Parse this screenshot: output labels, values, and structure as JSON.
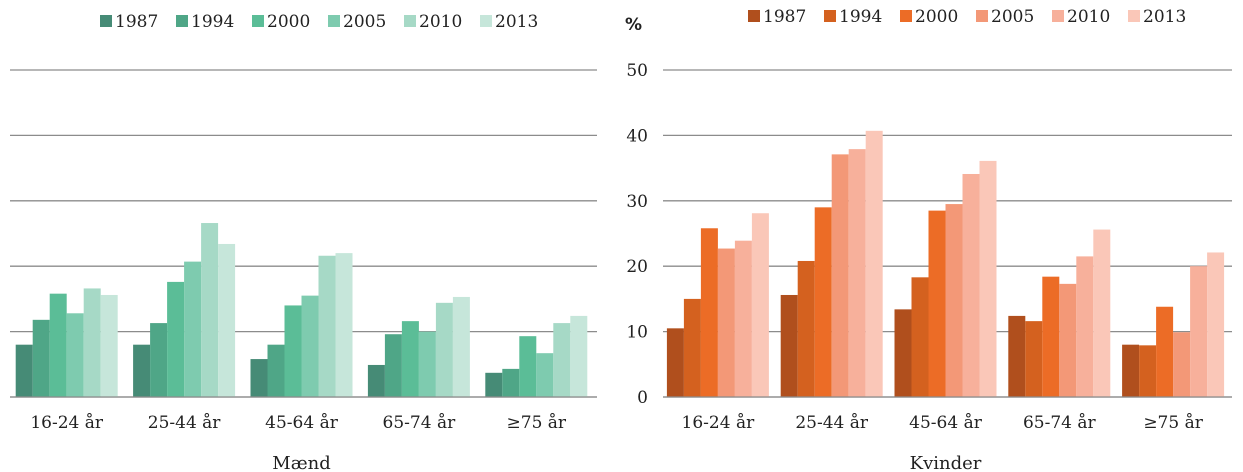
{
  "chart_data": [
    {
      "type": "bar",
      "xlabel": "Mænd",
      "categories": [
        "16-24 år",
        "25-44 år",
        "45-64 år",
        "65-74 år",
        "≥75 år"
      ],
      "ylim": [
        0,
        50
      ],
      "yticks": [
        0,
        10,
        20,
        30,
        40,
        50
      ],
      "show_y_tick_labels": false,
      "grid": true,
      "legend_position": "top",
      "series": [
        {
          "name": "1987",
          "color": "#468b76",
          "values": [
            8.0,
            8.0,
            5.8,
            4.9,
            3.7
          ]
        },
        {
          "name": "1994",
          "color": "#4fa687",
          "values": [
            11.8,
            11.3,
            8.0,
            9.6,
            4.3
          ]
        },
        {
          "name": "2000",
          "color": "#5bbd97",
          "values": [
            15.8,
            17.6,
            14.0,
            11.6,
            9.3
          ]
        },
        {
          "name": "2005",
          "color": "#7ecbaf",
          "values": [
            12.8,
            20.7,
            15.5,
            10.0,
            6.7
          ]
        },
        {
          "name": "2010",
          "color": "#a6d9c6",
          "values": [
            16.6,
            26.6,
            21.6,
            14.4,
            11.3
          ]
        },
        {
          "name": "2013",
          "color": "#c6e6da",
          "values": [
            15.6,
            23.4,
            22.0,
            15.3,
            12.4
          ]
        }
      ]
    },
    {
      "type": "bar",
      "xlabel": "Kvinder",
      "ylabel": "%",
      "categories": [
        "16-24 år",
        "25-44 år",
        "45-64 år",
        "65-74 år",
        "≥75 år"
      ],
      "ylim": [
        0,
        50
      ],
      "yticks": [
        0,
        10,
        20,
        30,
        40,
        50
      ],
      "show_y_tick_labels": true,
      "grid": true,
      "legend_position": "top",
      "series": [
        {
          "name": "1987",
          "color": "#b04f1d",
          "values": [
            10.5,
            15.6,
            13.4,
            12.4,
            8.0
          ]
        },
        {
          "name": "1994",
          "color": "#d4611f",
          "values": [
            15.0,
            20.8,
            18.3,
            11.6,
            7.9
          ]
        },
        {
          "name": "2000",
          "color": "#ec6c26",
          "values": [
            25.8,
            29.0,
            28.5,
            18.4,
            13.8
          ]
        },
        {
          "name": "2005",
          "color": "#f39877",
          "values": [
            22.7,
            37.1,
            29.5,
            17.3,
            9.9
          ]
        },
        {
          "name": "2010",
          "color": "#f7b09b",
          "values": [
            23.9,
            37.9,
            34.1,
            21.5,
            20.0
          ]
        },
        {
          "name": "2013",
          "color": "#fac7b8",
          "values": [
            28.1,
            40.7,
            36.1,
            25.6,
            22.1
          ]
        }
      ]
    }
  ]
}
